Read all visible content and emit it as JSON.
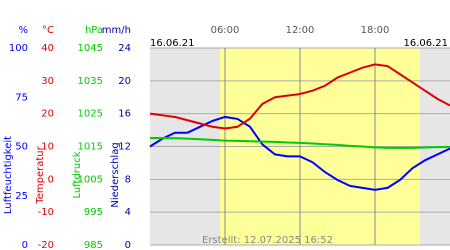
{
  "chart_data": {
    "type": "line",
    "date_left": "16.06.21",
    "date_right": "16.06.21",
    "footer": "Erstellt: 12.07.2025 16:52",
    "background": "#e6e6e6",
    "daylight": {
      "start": 5.6,
      "end": 21.6,
      "color": "#ffff99"
    },
    "xlim": [
      0,
      24
    ],
    "xticks": [
      {
        "value": 6,
        "label": "06:00"
      },
      {
        "value": 12,
        "label": "12:00"
      },
      {
        "value": 18,
        "label": "18:00"
      }
    ],
    "grid": true,
    "axes": [
      {
        "unit": "%",
        "title": "Luftfeuchtigkeit",
        "color": "#0000ff",
        "ylim": [
          0,
          100
        ],
        "yticks": [
          0,
          25,
          50,
          75,
          100
        ]
      },
      {
        "unit": "°C",
        "title": "Temperatur",
        "color": "#dd0000",
        "ylim": [
          -20,
          40
        ],
        "yticks": [
          -20,
          -10,
          0,
          10,
          20,
          30,
          40
        ]
      },
      {
        "unit": "hPa",
        "title": "Luftdruck",
        "color": "#00cc00",
        "ylim": [
          985,
          1045
        ],
        "yticks": [
          985,
          995,
          1005,
          1015,
          1025,
          1035,
          1045
        ]
      },
      {
        "unit": "mm/h",
        "title": "Niederschlag",
        "color": "#0000aa",
        "ylim": [
          0,
          24
        ],
        "yticks": [
          0,
          4,
          8,
          12,
          16,
          20,
          24
        ]
      }
    ],
    "x": [
      0,
      1,
      2,
      3,
      4,
      5,
      6,
      7,
      8,
      9,
      10,
      11,
      12,
      13,
      14,
      15,
      16,
      17,
      18,
      19,
      20,
      21,
      22,
      23,
      24
    ],
    "series": [
      {
        "name": "Luftfeuchtigkeit",
        "axis": 0,
        "color": "#0000ff",
        "values": [
          50,
          54,
          57,
          57,
          60,
          63,
          65,
          64,
          60,
          51,
          46,
          45,
          45,
          42,
          37,
          33,
          30,
          29,
          28,
          29,
          33,
          39,
          43,
          46,
          49
        ]
      },
      {
        "name": "Temperatur",
        "axis": 1,
        "color": "#dd0000",
        "values": [
          20,
          19.5,
          19,
          18,
          17,
          16,
          15.5,
          16,
          18.5,
          23,
          25,
          25.5,
          26,
          27,
          28.5,
          31,
          32.5,
          34,
          35,
          34.5,
          32,
          29.5,
          27,
          24.5,
          22.5
        ]
      },
      {
        "name": "Luftdruck",
        "axis": 2,
        "color": "#00cc00",
        "values": [
          1017.6,
          1017.6,
          1017.5,
          1017.4,
          1017.2,
          1017,
          1016.8,
          1016.7,
          1016.6,
          1016.5,
          1016.4,
          1016.2,
          1016.1,
          1015.9,
          1015.7,
          1015.5,
          1015.2,
          1015,
          1014.7,
          1014.6,
          1014.6,
          1014.6,
          1014.7,
          1014.8,
          1014.9
        ]
      }
    ]
  }
}
